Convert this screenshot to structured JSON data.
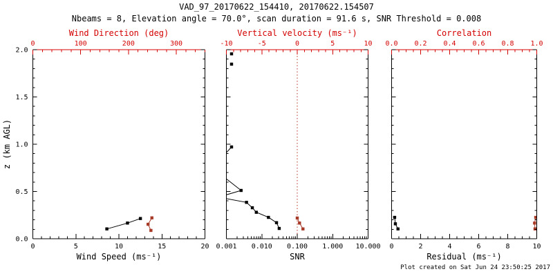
{
  "title": "VAD_97_20170622_154410, 20170622.154507",
  "subtitle": "Nbeams = 8, Elevation angle = 70.0°, scan duration = 91.6 s, SNR Threshold = 0.008",
  "footer": "Plot created on Sat Jun 24 23:50:25 2017",
  "colors": {
    "background": "#ffffff",
    "axis_black": "#000000",
    "axis_red": "#d40000",
    "data_black": "#000000",
    "data_red": "#a83a28",
    "ref_red": "#b53524"
  },
  "yaxis": {
    "label": "z (km AGL)",
    "min": 0,
    "max": 2,
    "ticks": [
      {
        "v": 0.0,
        "t": "0.0"
      },
      {
        "v": 0.5,
        "t": "0.5"
      },
      {
        "v": 1.0,
        "t": "1.0"
      },
      {
        "v": 1.5,
        "t": "1.5"
      },
      {
        "v": 2.0,
        "t": "2.0"
      }
    ],
    "minor_step": 0.1
  },
  "chart_data": [
    {
      "type": "line",
      "name": "wind-panel",
      "bottom_axis": {
        "label": "Wind Speed (ms⁻¹)",
        "scale": "linear",
        "min": 0,
        "max": 20,
        "ticks": [
          {
            "v": 0,
            "t": "0"
          },
          {
            "v": 5,
            "t": "5"
          },
          {
            "v": 10,
            "t": "10"
          },
          {
            "v": 15,
            "t": "15"
          },
          {
            "v": 20,
            "t": "20"
          }
        ],
        "minor_step": 1,
        "color": "black"
      },
      "top_axis": {
        "label": "Wind Direction (deg)",
        "scale": "linear",
        "min": 0,
        "max": 360,
        "ticks": [
          {
            "v": 0,
            "t": "0"
          },
          {
            "v": 100,
            "t": "100"
          },
          {
            "v": 200,
            "t": "200"
          },
          {
            "v": 300,
            "t": "300"
          }
        ],
        "minor_step": 20,
        "color": "red"
      },
      "series": [
        {
          "name": "wind-speed",
          "axis": "bottom",
          "color": "black",
          "segments": [
            [
              [
                8.6,
                0.104
              ],
              [
                11.0,
                0.166
              ],
              [
                12.5,
                0.214
              ]
            ]
          ]
        },
        {
          "name": "wind-direction",
          "axis": "top",
          "color": "red",
          "segments": [
            [
              [
                247,
                0.088
              ],
              [
                241,
                0.153
              ],
              [
                249,
                0.221
              ]
            ]
          ]
        }
      ]
    },
    {
      "type": "line",
      "name": "snr-panel",
      "bottom_axis": {
        "label": "SNR",
        "scale": "log",
        "min": 0.001,
        "max": 10,
        "ticks": [
          {
            "v": 0.001,
            "t": "0.001"
          },
          {
            "v": 0.01,
            "t": "0.010"
          },
          {
            "v": 0.1,
            "t": "0.100"
          },
          {
            "v": 1,
            "t": "1.000"
          },
          {
            "v": 10,
            "t": "10.000"
          }
        ],
        "color": "black"
      },
      "top_axis": {
        "label": "Vertical velocity (ms⁻¹)",
        "scale": "linear",
        "min": -10,
        "max": 10,
        "ticks": [
          {
            "v": -10,
            "t": "-10"
          },
          {
            "v": -5,
            "t": "-5"
          },
          {
            "v": 0,
            "t": "0"
          },
          {
            "v": 5,
            "t": "5"
          },
          {
            "v": 10,
            "t": "10"
          }
        ],
        "minor_step": 1,
        "color": "red"
      },
      "ref_lines": [
        {
          "axis": "top",
          "value": 0,
          "style": "dotted",
          "color": "red"
        }
      ],
      "series": [
        {
          "name": "snr",
          "axis": "bottom",
          "color": "black",
          "segments": [
            [
              [
                0.0014,
                1.956
              ]
            ],
            [
              [
                0.0014,
                1.847
              ]
            ],
            [
              [
                0.0014,
                0.971
              ],
              [
                0.0004,
                0.75,
                "offscale"
              ],
              [
                0.0026,
                0.511
              ],
              [
                0.0006,
                0.44,
                "offscale"
              ],
              [
                0.0037,
                0.385
              ],
              [
                0.0054,
                0.328
              ],
              [
                0.007,
                0.28
              ],
              [
                0.0154,
                0.226
              ],
              [
                0.026,
                0.17
              ],
              [
                0.031,
                0.109
              ]
            ]
          ]
        },
        {
          "name": "vertical-velocity",
          "axis": "top",
          "color": "red",
          "segments": [
            [
              [
                0.81,
                0.104
              ],
              [
                0.32,
                0.166
              ],
              [
                0.0,
                0.219
              ]
            ]
          ]
        }
      ]
    },
    {
      "type": "line",
      "name": "residual-panel",
      "bottom_axis": {
        "label": "Residual (ms⁻¹)",
        "scale": "linear",
        "min": 0,
        "max": 10,
        "ticks": [
          {
            "v": 0,
            "t": "0"
          },
          {
            "v": 2,
            "t": "2"
          },
          {
            "v": 4,
            "t": "4"
          },
          {
            "v": 6,
            "t": "6"
          },
          {
            "v": 8,
            "t": "8"
          },
          {
            "v": 10,
            "t": "10"
          }
        ],
        "minor_step": 0.5,
        "color": "black"
      },
      "top_axis": {
        "label": "Correlation",
        "scale": "linear",
        "min": 0,
        "max": 1,
        "ticks": [
          {
            "v": 0,
            "t": "0.0"
          },
          {
            "v": 0.2,
            "t": "0.2"
          },
          {
            "v": 0.4,
            "t": "0.4"
          },
          {
            "v": 0.6,
            "t": "0.6"
          },
          {
            "v": 0.8,
            "t": "0.8"
          },
          {
            "v": 1,
            "t": "1.0"
          }
        ],
        "minor_step": 0.05,
        "color": "red"
      },
      "series": [
        {
          "name": "residual",
          "axis": "bottom",
          "color": "black",
          "segments": [
            [
              [
                0.44,
                0.104
              ],
              [
                0.26,
                0.158
              ],
              [
                0.21,
                0.226
              ]
            ]
          ]
        },
        {
          "name": "correlation",
          "axis": "top",
          "color": "red",
          "segments": [
            [
              [
                0.988,
                0.104
              ],
              [
                0.985,
                0.166
              ],
              [
                0.993,
                0.226
              ]
            ]
          ]
        }
      ]
    }
  ]
}
